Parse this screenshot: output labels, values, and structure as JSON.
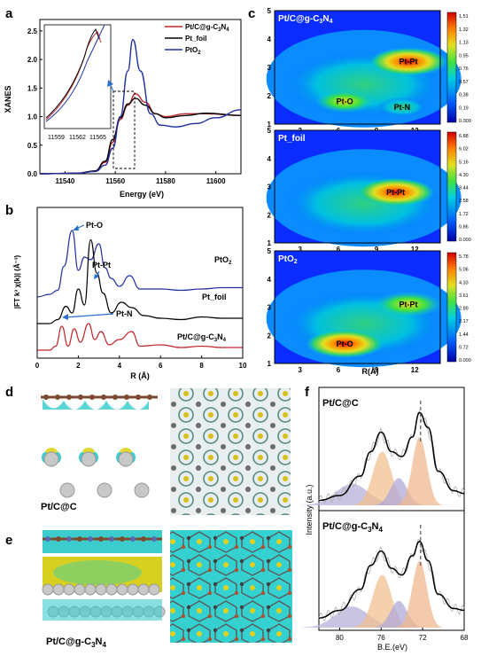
{
  "panels": {
    "a": {
      "letter": "a",
      "ylabel": "XANES",
      "xlabel": "Energy (eV)",
      "legend": [
        "Pt/C@g-C3N4",
        "Pt_foil",
        "PtO2"
      ],
      "inset_ticks": [
        "11559",
        "11562",
        "11565"
      ]
    },
    "b": {
      "letter": "b",
      "ylabel": "|FT k³ χ(k)| (Å⁻³)",
      "xlabel": "R (Å)",
      "annotations": [
        "Pt-O",
        "Pt-Pt",
        "Pt-N"
      ],
      "curve_labels": [
        "PtO2",
        "Pt_foil",
        "Pt/C@g-C3N4"
      ]
    },
    "c": {
      "letter": "c",
      "titles": [
        "Pt/C@g-C3N4",
        "Pt_foil",
        "PtO2"
      ],
      "xlabel": "R(Å)",
      "labels_1": [
        "Pt-Pt",
        "Pt-O",
        "Pt-N"
      ],
      "labels_2": [
        "Pt-Pt"
      ],
      "labels_3": [
        "Pt-Pt",
        "Pt-O"
      ],
      "cbar_1": [
        "1.51",
        "1.32",
        "1.13",
        "0.95",
        "0.76",
        "0.57",
        "0.38",
        "0.19",
        "0.000"
      ],
      "cbar_2": [
        "6.88",
        "6.02",
        "5.16",
        "4.30",
        "3.44",
        "2.58",
        "1.72",
        "0.86",
        "0.000"
      ],
      "cbar_3": [
        "5.78",
        "5.06",
        "4.33",
        "3.61",
        "2.89",
        "2.17",
        "1.44",
        "0.72",
        "0.000"
      ]
    },
    "d": {
      "letter": "d",
      "label": "Pt/C@C"
    },
    "e": {
      "letter": "e",
      "label": "Pt/C@g-C3N4"
    },
    "f": {
      "letter": "f",
      "titles": [
        "Pt/C@C",
        "Pt/C@g-C3N4"
      ],
      "ylabel": "Intensity (a.u.)",
      "xlabel": "B.E.(eV)"
    }
  },
  "chart_data": [
    {
      "type": "line",
      "panel": "a",
      "title": "",
      "xlabel": "Energy (eV)",
      "ylabel": "XANES",
      "xlim": [
        11530,
        11610
      ],
      "ylim": [
        0,
        2.7
      ],
      "xticks": [
        11540,
        11560,
        11580,
        11600
      ],
      "yticks": [
        0.0,
        0.5,
        1.0,
        1.5,
        2.0,
        2.5
      ],
      "legend_position": "top-right",
      "series": [
        {
          "name": "Pt/C@g-C3N4",
          "color": "#c0262c",
          "x": [
            11530,
            11545,
            11552,
            11556,
            11559,
            11562,
            11565,
            11568,
            11572,
            11576,
            11580,
            11588,
            11596,
            11610
          ],
          "y": [
            0,
            0.01,
            0.05,
            0.2,
            0.55,
            0.95,
            1.2,
            1.4,
            1.25,
            1.05,
            1.0,
            1.05,
            1.05,
            1.02
          ]
        },
        {
          "name": "Pt_foil",
          "color": "#000000",
          "x": [
            11530,
            11545,
            11552,
            11556,
            11559,
            11562,
            11565,
            11568,
            11572,
            11576,
            11580,
            11588,
            11596,
            11610
          ],
          "y": [
            0,
            0.01,
            0.05,
            0.22,
            0.6,
            0.98,
            1.22,
            1.32,
            1.2,
            1.05,
            0.98,
            1.02,
            1.06,
            1.02
          ]
        },
        {
          "name": "PtO2",
          "color": "#1f2fa0",
          "x": [
            11530,
            11545,
            11552,
            11556,
            11559,
            11562,
            11565,
            11567,
            11570,
            11574,
            11578,
            11584,
            11592,
            11600,
            11610
          ],
          "y": [
            0,
            0.01,
            0.04,
            0.15,
            0.45,
            1.0,
            1.8,
            2.35,
            1.8,
            1.05,
            0.85,
            0.82,
            0.88,
            0.98,
            1.12
          ]
        }
      ]
    },
    {
      "type": "line",
      "panel": "b",
      "title": "",
      "xlabel": "R (Å)",
      "ylabel": "|FT k³ χ(k)| (Å⁻³)",
      "xlim": [
        0,
        10
      ],
      "xticks": [
        0,
        2,
        4,
        6,
        8,
        10
      ],
      "series": [
        {
          "name": "PtO2",
          "color": "#1f2fa0",
          "x": [
            0,
            0.6,
            1.0,
            1.3,
            1.7,
            2.0,
            2.3,
            2.6,
            3.0,
            3.3,
            3.6,
            4.0,
            4.5,
            5.0,
            6,
            7,
            8,
            9,
            10
          ],
          "y": [
            0.42,
            0.44,
            0.47,
            0.65,
            0.92,
            0.62,
            0.72,
            0.7,
            0.82,
            0.64,
            0.56,
            0.5,
            0.58,
            0.48,
            0.48,
            0.47,
            0.48,
            0.49,
            0.49
          ]
        },
        {
          "name": "Pt_foil",
          "color": "#000000",
          "x": [
            0,
            0.6,
            1.0,
            1.4,
            1.7,
            2.0,
            2.3,
            2.6,
            2.9,
            3.2,
            3.6,
            4.1,
            4.6,
            5.2,
            6,
            7,
            8,
            9,
            10
          ],
          "y": [
            0.22,
            0.22,
            0.25,
            0.35,
            0.3,
            0.48,
            0.36,
            0.85,
            0.6,
            0.45,
            0.3,
            0.38,
            0.34,
            0.28,
            0.26,
            0.25,
            0.27,
            0.26,
            0.26
          ]
        },
        {
          "name": "Pt/C@g-C3N4",
          "color": "#c0262c",
          "x": [
            0,
            0.6,
            0.9,
            1.2,
            1.5,
            1.8,
            2.1,
            2.5,
            2.8,
            3.1,
            3.5,
            4.0,
            4.6,
            5.0,
            6,
            7,
            8,
            9,
            10
          ],
          "y": [
            0.02,
            0.02,
            0.05,
            0.2,
            0.05,
            0.18,
            0.08,
            0.22,
            0.1,
            0.16,
            0.06,
            0.1,
            0.16,
            0.05,
            0.06,
            0.04,
            0.05,
            0.04,
            0.04
          ]
        }
      ]
    },
    {
      "type": "heatmap",
      "panel": "c",
      "xlabel": "R(Å)",
      "xticks": [
        3,
        6,
        9,
        12
      ],
      "yticks": [
        1,
        2,
        3,
        4,
        5
      ],
      "maps": [
        {
          "name": "Pt/C@g-C3N4",
          "max": 1.51,
          "features": [
            {
              "label": "Pt-Pt",
              "R": 11.5,
              "k": 3.2,
              "intensity": 1.51
            },
            {
              "label": "Pt-O",
              "R": 6.5,
              "k": 1.8,
              "intensity": 0.9
            },
            {
              "label": "Pt-N",
              "R": 11.0,
              "k": 1.6,
              "intensity": 0.6
            }
          ]
        },
        {
          "name": "Pt_foil",
          "max": 6.88,
          "features": [
            {
              "label": "Pt-Pt",
              "R": 10.5,
              "k": 2.8,
              "intensity": 6.88
            }
          ]
        },
        {
          "name": "PtO2",
          "max": 5.78,
          "features": [
            {
              "label": "Pt-Pt",
              "R": 11.5,
              "k": 3.1,
              "intensity": 4.6
            },
            {
              "label": "Pt-O",
              "R": 6.5,
              "k": 1.7,
              "intensity": 5.78
            }
          ]
        }
      ]
    },
    {
      "type": "line",
      "panel": "f",
      "xlabel": "B.E.(eV)",
      "ylabel": "Intensity (a.u.)",
      "xlim": [
        82,
        68
      ],
      "xticks": [
        80,
        76,
        72,
        68
      ],
      "series": [
        {
          "name": "Pt/C@C fit",
          "color": "#000000",
          "x": [
            82,
            80,
            78,
            77,
            76,
            75,
            74,
            73,
            72.3,
            71.5,
            70.5,
            69,
            68
          ],
          "y": [
            0.05,
            0.1,
            0.3,
            0.55,
            0.75,
            0.55,
            0.5,
            0.7,
            0.95,
            0.8,
            0.35,
            0.15,
            0.12
          ]
        },
        {
          "name": "Pt/C@g-C3N4 fit",
          "color": "#000000",
          "x": [
            82,
            80,
            78,
            77,
            76,
            75,
            74,
            73,
            72.3,
            71.5,
            70.5,
            69,
            68
          ],
          "y": [
            0.1,
            0.18,
            0.4,
            0.65,
            0.8,
            0.62,
            0.55,
            0.75,
            0.9,
            0.7,
            0.35,
            0.2,
            0.18
          ]
        }
      ]
    }
  ]
}
